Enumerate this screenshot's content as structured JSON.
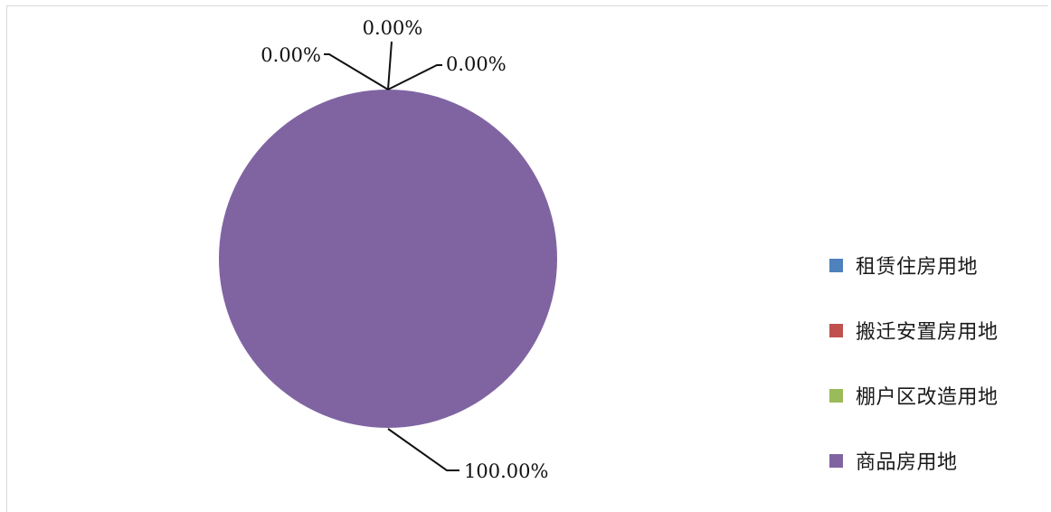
{
  "chart_data": {
    "type": "pie",
    "slices": [
      {
        "name": "租赁住房用地",
        "value": 0.0,
        "label": "0.00%",
        "color": "#4F81BD"
      },
      {
        "name": "搬迁安置房用地",
        "value": 0.0,
        "label": "0.00%",
        "color": "#C0504D"
      },
      {
        "name": "棚户区改造用地",
        "value": 0.0,
        "label": "0.00%",
        "color": "#9BBB59"
      },
      {
        "name": "商品房用地",
        "value": 100.0,
        "label": "100.00%",
        "color": "#8064A2"
      }
    ],
    "legend_position": "right"
  }
}
